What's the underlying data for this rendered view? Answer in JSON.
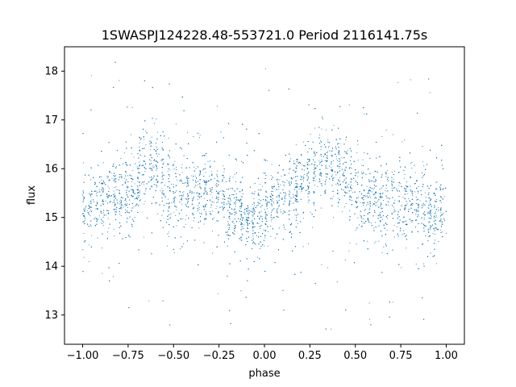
{
  "chart_data": {
    "type": "scatter",
    "title": "1SWASPJ124228.48-553721.0 Period 2116141.75s",
    "xlabel": "phase",
    "ylabel": "flux",
    "xlim": [
      -1.1,
      1.1
    ],
    "ylim": [
      12.4,
      18.5
    ],
    "x_ticks": [
      -1.0,
      -0.75,
      -0.5,
      -0.25,
      0.0,
      0.25,
      0.5,
      0.75,
      1.0
    ],
    "x_tick_labels": [
      "−1.00",
      "−0.75",
      "−0.50",
      "−0.25",
      "0.00",
      "0.25",
      "0.50",
      "0.75",
      "1.00"
    ],
    "y_ticks": [
      13,
      14,
      15,
      16,
      17,
      18
    ],
    "y_tick_labels": [
      "13",
      "14",
      "15",
      "16",
      "17",
      "18"
    ],
    "grid": false,
    "legend": "none",
    "marker_color": "#1f77b4",
    "series": [
      {
        "x_range": [
          -1.0,
          1.0
        ],
        "y_range": [
          12.7,
          18.2
        ],
        "median": 15.3,
        "clusters": [
          {
            "phase": -0.97,
            "center": 15.2
          },
          {
            "phase": -0.85,
            "center": 15.4
          },
          {
            "phase": -0.72,
            "center": 15.5
          },
          {
            "phase": -0.65,
            "center": 16.2
          },
          {
            "phase": -0.55,
            "center": 15.7
          },
          {
            "phase": -0.45,
            "center": 15.4
          },
          {
            "phase": -0.3,
            "center": 15.6
          },
          {
            "phase": -0.18,
            "center": 15.2
          },
          {
            "phase": -0.05,
            "center": 15.0
          },
          {
            "phase": 0.05,
            "center": 15.2
          },
          {
            "phase": 0.15,
            "center": 15.4
          },
          {
            "phase": 0.22,
            "center": 15.8
          },
          {
            "phase": 0.35,
            "center": 16.2
          },
          {
            "phase": 0.45,
            "center": 15.8
          },
          {
            "phase": 0.55,
            "center": 15.4
          },
          {
            "phase": 0.7,
            "center": 15.3
          },
          {
            "phase": 0.82,
            "center": 15.2
          },
          {
            "phase": 0.95,
            "center": 15.1
          }
        ]
      }
    ]
  }
}
